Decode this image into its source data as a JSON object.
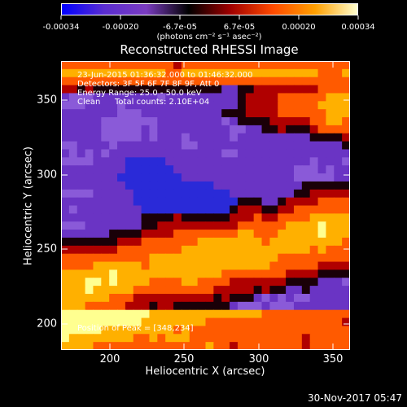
{
  "colorbar": {
    "tick_labels": [
      "-0.00034",
      "-0.00020",
      "-6.7e-05",
      "6.7e-05",
      "0.00020",
      "0.00034"
    ],
    "unit": "(photons cm⁻² s⁻¹ asec⁻²)",
    "colors": [
      "#0000ff",
      "#5a2dd0",
      "#7a3cc0",
      "#000000",
      "#a00000",
      "#ff4a00",
      "#ffa000",
      "#ffffd0"
    ]
  },
  "title": "Reconstructed RHESSI Image",
  "annotations": {
    "line1": "23-Jun-2015 01:36:32.000 to 01:46:32.000",
    "line2": "Detectors: 3F 5F 6F 7F 8F 9F, Att 0",
    "line3": "Energy Range: 25.0 - 50.0 keV",
    "line4_left": "Clean",
    "line4_right": "Total counts: 2.10E+04",
    "peak": "Position of Peak = [348,234]"
  },
  "axes": {
    "xlabel": "Heliocentric X (arcsec)",
    "ylabel": "Heliocentric Y (arcsec)",
    "xticks": [
      "200",
      "250",
      "300",
      "350"
    ],
    "yticks": [
      "200",
      "250",
      "300",
      "350"
    ]
  },
  "timestamp": "30-Nov-2017 05:47",
  "image_palette": {
    "blue": "#2a2ad8",
    "purple": "#6a34c4",
    "lavender": "#8a5ad8",
    "dark": "#1a0008",
    "red": "#b00000",
    "orange": "#ff5a00",
    "gold": "#ffb000",
    "yellow": "#ffff90"
  }
}
